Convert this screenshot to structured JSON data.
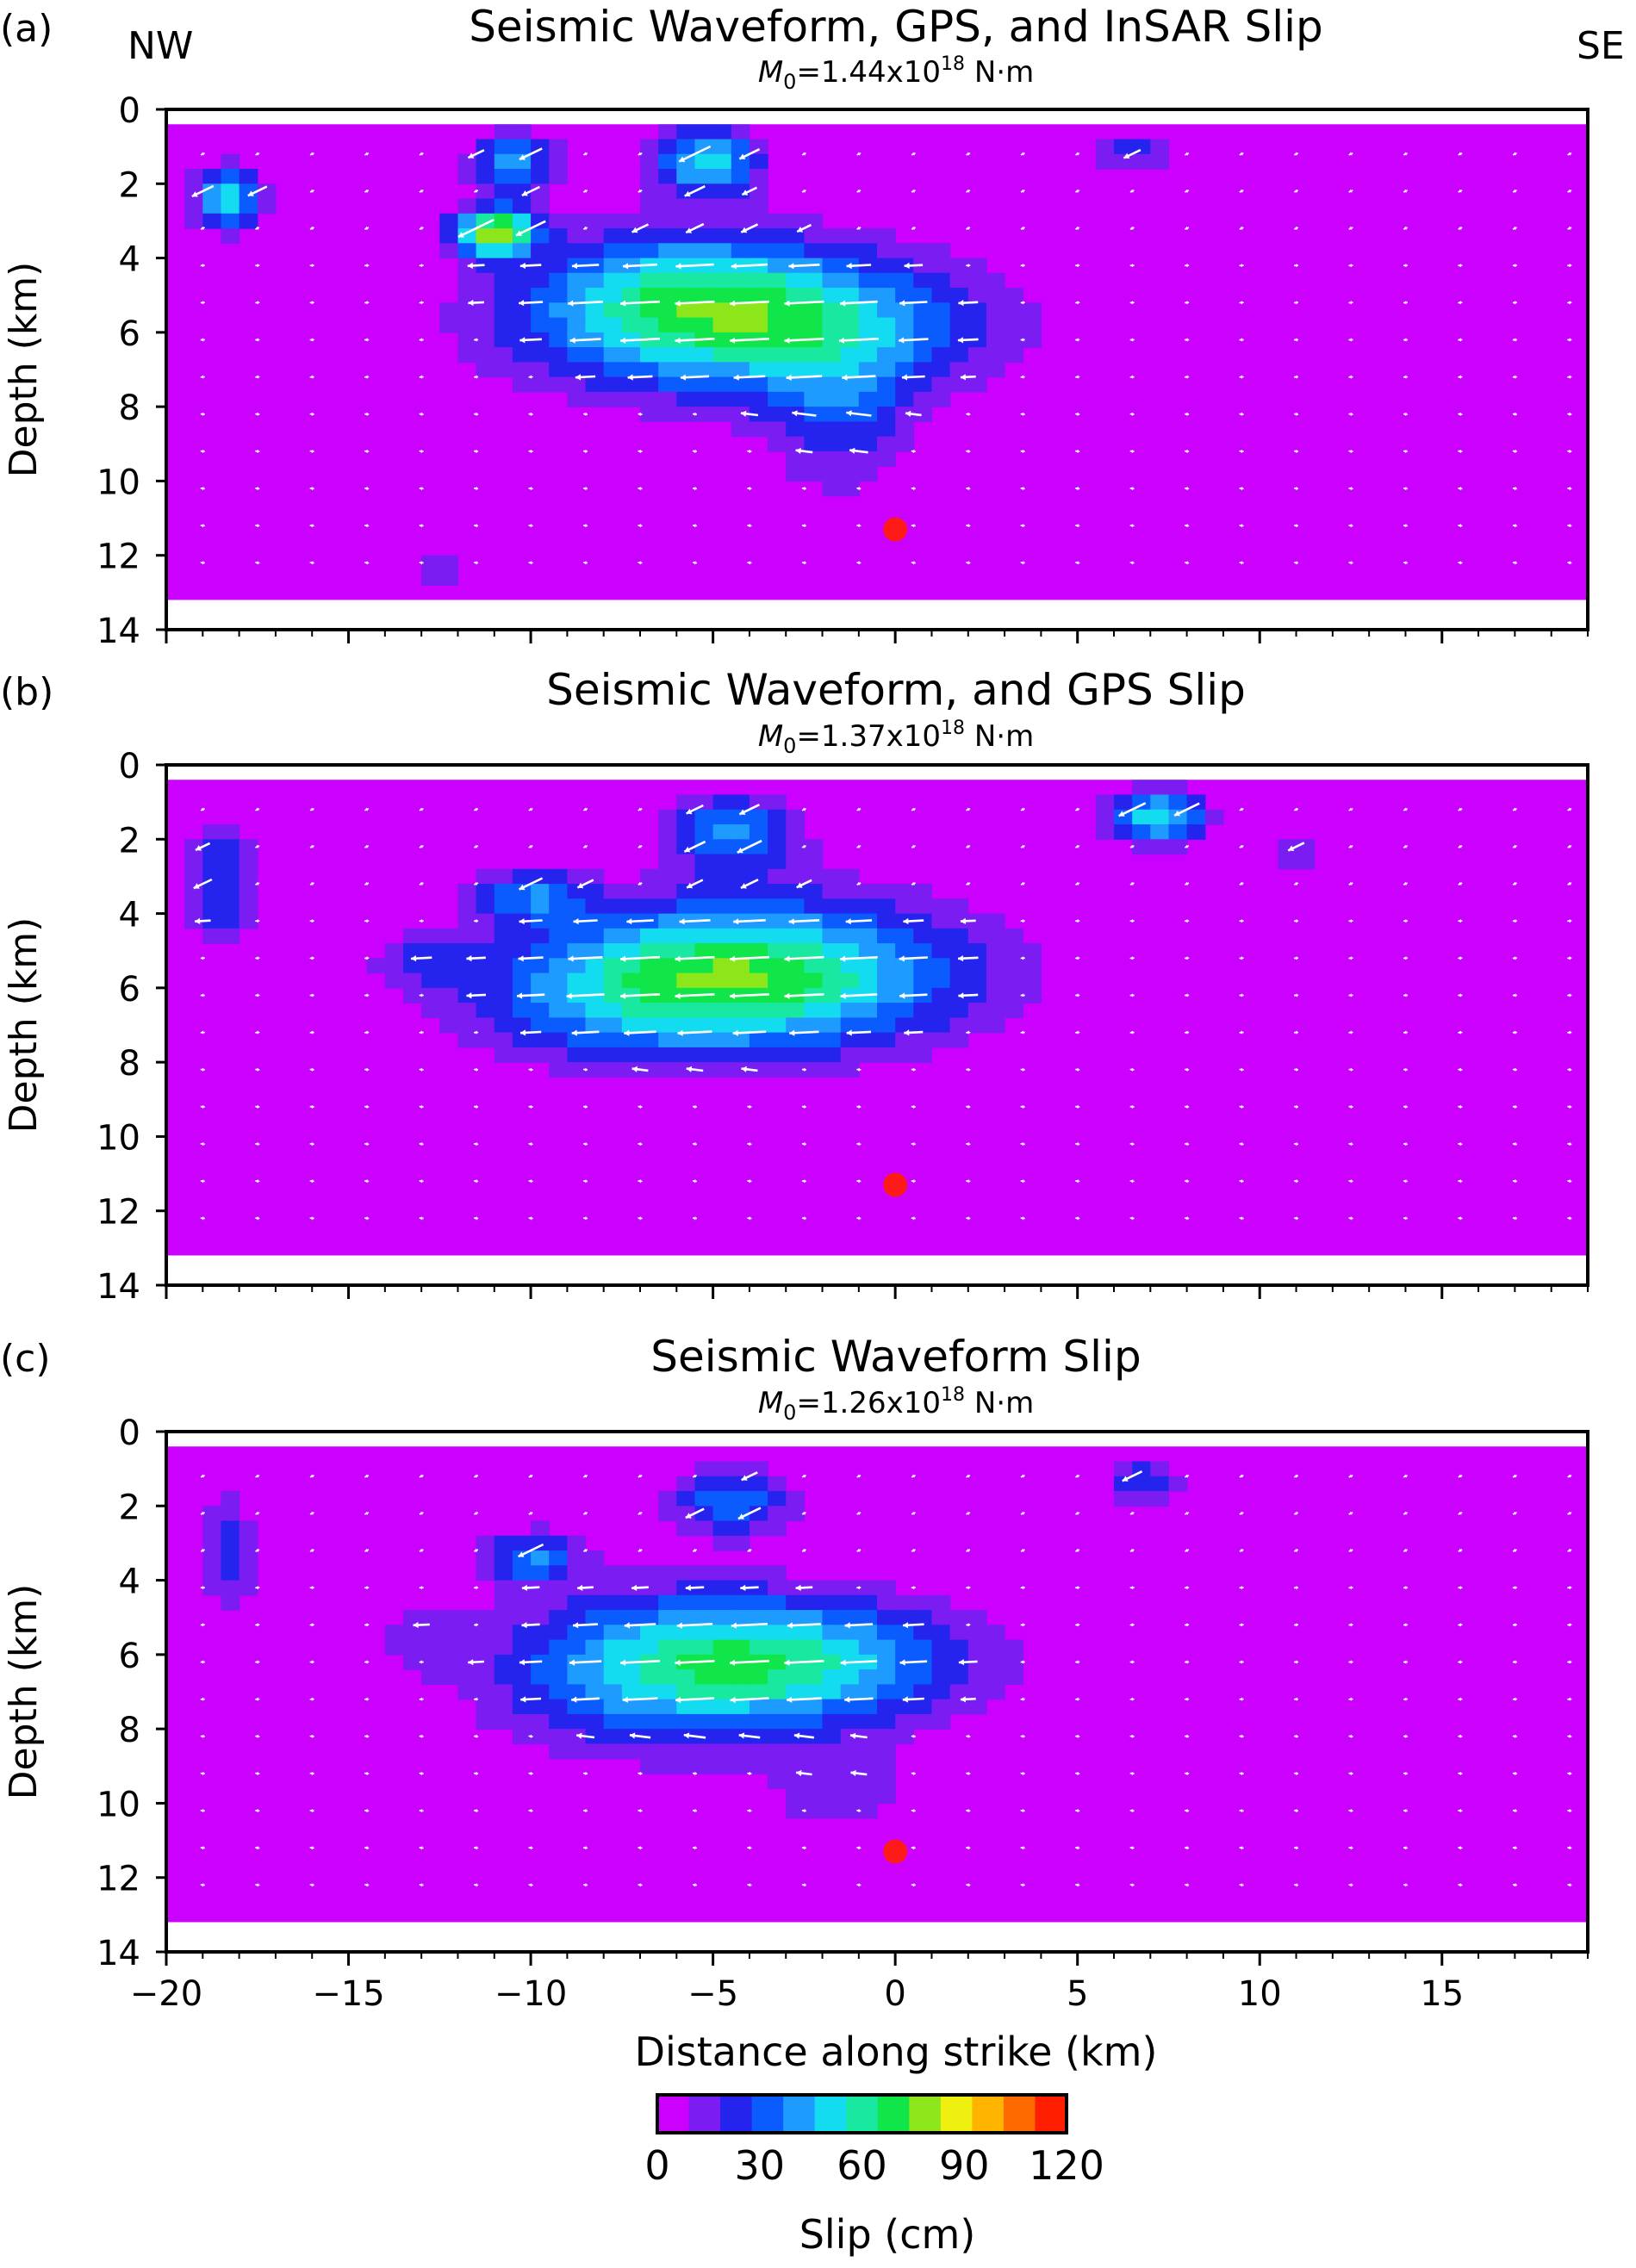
{
  "direction_labels": {
    "left": "NW",
    "right": "SE"
  },
  "axes": {
    "ylabel": "Depth (km)",
    "xlabel": "Distance along  strike (km)",
    "xlim": [
      -20,
      19
    ],
    "ylim": [
      14,
      0
    ],
    "xticks": [
      -20,
      -15,
      -10,
      -5,
      0,
      5,
      10,
      15
    ],
    "yticks": [
      0,
      2,
      4,
      6,
      8,
      10,
      12,
      14
    ]
  },
  "fault": {
    "top_depth": 0.4,
    "bottom_depth": 13.2
  },
  "colorbar": {
    "label": "Slip (cm)",
    "ticks": [
      0,
      30,
      60,
      90,
      120
    ],
    "range": [
      0,
      120
    ],
    "colors": [
      "#cc00ff",
      "#7a1cf2",
      "#2424ee",
      "#0a5cff",
      "#1e9bff",
      "#14dcf0",
      "#18e8a0",
      "#10e64a",
      "#8ce61a",
      "#f0f010",
      "#ffb400",
      "#ff6a00",
      "#ff1e00"
    ]
  },
  "hypocenter": {
    "x": 0,
    "depth": 11.3,
    "color": "#ff1a1a"
  },
  "chart_data": [
    {
      "type": "heatmap",
      "panel_label": "(a)",
      "title": "Seismic Waveform, GPS, and InSAR Slip",
      "moment": {
        "prefix": "M",
        "sub": "0",
        "value": "=1.44x10",
        "exp": "18",
        "unit": " N·m"
      },
      "slip_patches": [
        {
          "x": -4,
          "depth": 5.8,
          "sx": 6.0,
          "sy": 1.9,
          "amp": 62
        },
        {
          "x": -6,
          "depth": 4.6,
          "sx": 4.0,
          "sy": 1.6,
          "amp": 25
        },
        {
          "x": -1.5,
          "depth": 8.3,
          "sx": 2.0,
          "sy": 2.2,
          "amp": 22
        },
        {
          "x": -11,
          "depth": 3.3,
          "sx": 1.1,
          "sy": 0.6,
          "amp": 80
        },
        {
          "x": -10.5,
          "depth": 1.5,
          "sx": 1.2,
          "sy": 0.9,
          "amp": 40
        },
        {
          "x": -5.2,
          "depth": 1.4,
          "sx": 1.5,
          "sy": 0.9,
          "amp": 50
        },
        {
          "x": -18.3,
          "depth": 2.4,
          "sx": 0.9,
          "sy": 0.8,
          "amp": 55
        },
        {
          "x": 6.5,
          "depth": 1.1,
          "sx": 1.2,
          "sy": 0.6,
          "amp": 20
        },
        {
          "x": -12.5,
          "depth": 12.4,
          "sx": 1.1,
          "sy": 0.8,
          "amp": 16
        }
      ]
    },
    {
      "type": "heatmap",
      "panel_label": "(b)",
      "title": "Seismic Waveform, and GPS Slip",
      "moment": {
        "prefix": "M",
        "sub": "0",
        "value": "=1.37x10",
        "exp": "18",
        "unit": " N·m"
      },
      "slip_patches": [
        {
          "x": -3.5,
          "depth": 5.6,
          "sx": 5.5,
          "sy": 2.0,
          "amp": 62
        },
        {
          "x": -7.5,
          "depth": 6.2,
          "sx": 4.5,
          "sy": 1.8,
          "amp": 28
        },
        {
          "x": -4.5,
          "depth": 1.8,
          "sx": 1.8,
          "sy": 1.0,
          "amp": 38
        },
        {
          "x": -10,
          "depth": 3.5,
          "sx": 1.5,
          "sy": 0.7,
          "amp": 32
        },
        {
          "x": 7.2,
          "depth": 1.4,
          "sx": 1.3,
          "sy": 0.7,
          "amp": 55
        },
        {
          "x": -18.5,
          "depth": 3.2,
          "sx": 0.9,
          "sy": 1.6,
          "amp": 30
        },
        {
          "x": -13,
          "depth": 5.3,
          "sx": 1.3,
          "sy": 0.8,
          "amp": 16
        },
        {
          "x": 11,
          "depth": 2.4,
          "sx": 0.9,
          "sy": 0.6,
          "amp": 20
        }
      ]
    },
    {
      "type": "heatmap",
      "panel_label": "(c)",
      "title": "Seismic Waveform Slip",
      "moment": {
        "prefix": "M",
        "sub": "0",
        "value": "=1.26x10",
        "exp": "18",
        "unit": " N·m"
      },
      "slip_patches": [
        {
          "x": -3,
          "depth": 6.2,
          "sx": 5.0,
          "sy": 1.7,
          "amp": 52
        },
        {
          "x": -7,
          "depth": 6.5,
          "sx": 4.5,
          "sy": 2.2,
          "amp": 30
        },
        {
          "x": -4.5,
          "depth": 1.9,
          "sx": 1.6,
          "sy": 0.9,
          "amp": 36
        },
        {
          "x": -10,
          "depth": 3.4,
          "sx": 1.3,
          "sy": 0.7,
          "amp": 35
        },
        {
          "x": 6.8,
          "depth": 1.3,
          "sx": 1.0,
          "sy": 0.6,
          "amp": 28
        },
        {
          "x": -18.3,
          "depth": 3.3,
          "sx": 0.8,
          "sy": 1.7,
          "amp": 24
        },
        {
          "x": -1.5,
          "depth": 9.7,
          "sx": 2.0,
          "sy": 1.2,
          "amp": 16
        },
        {
          "x": -13,
          "depth": 5.5,
          "sx": 1.2,
          "sy": 1.0,
          "amp": 13
        }
      ]
    }
  ]
}
